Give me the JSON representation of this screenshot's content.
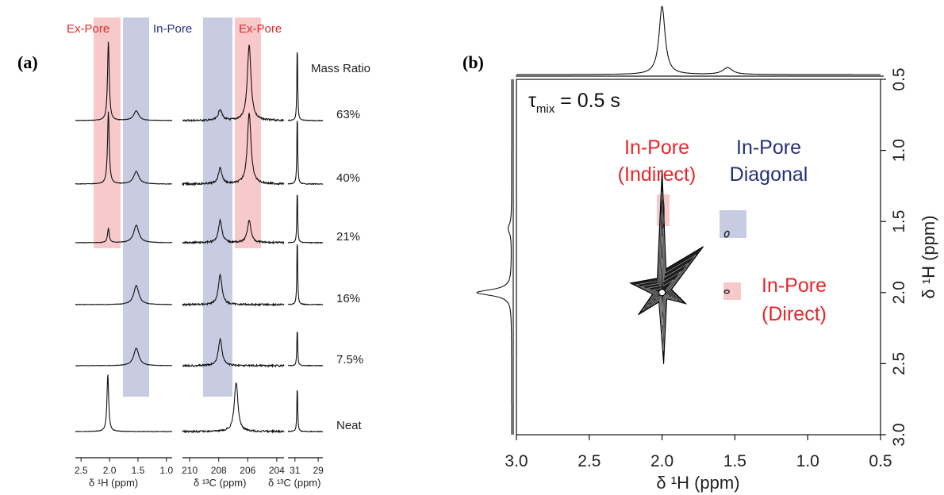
{
  "panel_a": {
    "label": "(a)",
    "bands": [
      {
        "label": "Ex-Pore",
        "color": "#e8262b"
      },
      {
        "label": "In-Pore",
        "color": "#27307a"
      },
      {
        "label": "Ex-Pore",
        "color": "#e8262b"
      }
    ],
    "mass_ratio_title": "Mass Ratio",
    "xlabels": [
      "δ ¹H (ppm)",
      "δ ¹³C (ppm)",
      "δ ¹³C (ppm)"
    ]
  },
  "panel_b": {
    "label": "(b)",
    "tau_prefix": "τ",
    "tau_sub": "mix",
    "tau_rest": " = 0.5 s",
    "annotations": [
      {
        "lines": [
          "In-Pore",
          "(Indirect)"
        ],
        "color": "#e8262b"
      },
      {
        "lines": [
          "In-Pore",
          "Diagonal"
        ],
        "color": "#27307a"
      },
      {
        "lines": [
          "In-Pore",
          "(Direct)"
        ],
        "color": "#e8262b"
      }
    ]
  },
  "chart_data": [
    {
      "type": "line",
      "panel": "(a)",
      "subplots": [
        {
          "xlabel": "δ ¹H (ppm)",
          "xlim": [
            2.6,
            0.9
          ],
          "x_ticks": [
            2.5,
            2.0,
            1.5,
            1.0
          ],
          "x_tick_labels": [
            "2.5",
            "2.0",
            "1.5",
            "1.0"
          ]
        },
        {
          "xlabel": "δ ¹³C (ppm)",
          "xlim": [
            210.5,
            203.5
          ],
          "x_ticks": [
            210,
            208,
            206,
            204
          ],
          "x_tick_labels": [
            "210",
            "208",
            "206",
            "204"
          ]
        },
        {
          "xlabel": "δ ¹³C (ppm)",
          "xlim": [
            31.6,
            28.6
          ],
          "x_ticks": [
            31,
            29
          ],
          "x_tick_labels": [
            "31",
            "29"
          ]
        }
      ],
      "series": [
        {
          "name": "63%",
          "peaks": [
            [
              {
                "x": 2.02,
                "h": 1.0
              },
              {
                "x": 1.53,
                "h": 0.12
              }
            ],
            [
              {
                "x": 207.9,
                "h": 0.14
              },
              {
                "x": 205.9,
                "h": 0.95
              }
            ],
            [
              {
                "x": 30.8,
                "h": 1.0
              }
            ]
          ]
        },
        {
          "name": "40%",
          "peaks": [
            [
              {
                "x": 2.02,
                "h": 0.92
              },
              {
                "x": 1.53,
                "h": 0.16
              }
            ],
            [
              {
                "x": 207.9,
                "h": 0.2
              },
              {
                "x": 205.9,
                "h": 0.9
              }
            ],
            [
              {
                "x": 30.8,
                "h": 0.92
              }
            ]
          ]
        },
        {
          "name": "21%",
          "peaks": [
            [
              {
                "x": 2.02,
                "h": 0.18
              },
              {
                "x": 1.53,
                "h": 0.22
              }
            ],
            [
              {
                "x": 207.9,
                "h": 0.28
              },
              {
                "x": 205.9,
                "h": 0.28
              }
            ],
            [
              {
                "x": 30.8,
                "h": 0.7
              }
            ]
          ]
        },
        {
          "name": "16%",
          "peaks": [
            [
              {
                "x": 1.53,
                "h": 0.24
              }
            ],
            [
              {
                "x": 207.9,
                "h": 0.38
              }
            ],
            [
              {
                "x": 30.8,
                "h": 0.88
              }
            ]
          ]
        },
        {
          "name": "7.5%",
          "peaks": [
            [
              {
                "x": 1.53,
                "h": 0.22
              }
            ],
            [
              {
                "x": 207.9,
                "h": 0.34
              }
            ],
            [
              {
                "x": 30.8,
                "h": 0.5
              }
            ]
          ]
        },
        {
          "name": "Neat",
          "peaks": [
            [
              {
                "x": 2.03,
                "h": 0.72
              }
            ],
            [
              {
                "x": 206.8,
                "h": 0.62
              }
            ],
            [
              {
                "x": 30.8,
                "h": 0.6
              }
            ]
          ]
        }
      ],
      "bands": [
        {
          "subplot": 0,
          "x_range": [
            2.22,
            1.82
          ],
          "label": "Ex-Pore"
        },
        {
          "subplot": 0,
          "x_range": [
            1.75,
            1.32
          ],
          "label": "In-Pore"
        },
        {
          "subplot": 1,
          "x_range": [
            208.8,
            207.2
          ],
          "label": "In-Pore"
        },
        {
          "subplot": 1,
          "x_range": [
            206.4,
            205.0
          ],
          "label": "Ex-Pore"
        }
      ]
    },
    {
      "type": "heatmap",
      "panel": "(b)",
      "xlabel": "δ ¹H (ppm)",
      "ylabel": "δ ¹H (ppm)",
      "xlim": [
        3.0,
        0.5
      ],
      "ylim": [
        3.0,
        0.5
      ],
      "x_ticks": [
        3.0,
        2.5,
        2.0,
        1.5,
        1.0,
        0.5
      ],
      "x_tick_labels": [
        "3.0",
        "2.5",
        "2.0",
        "1.5",
        "1.0",
        "0.5"
      ],
      "y_ticks": [
        0.5,
        1.0,
        1.5,
        2.0,
        2.5,
        3.0
      ],
      "y_tick_labels": [
        "0.5",
        "1.0",
        "1.5",
        "2.0",
        "2.5",
        "3.0"
      ],
      "cross_peaks": [
        {
          "x": 2.0,
          "y": 2.0,
          "label": "main diagonal"
        },
        {
          "x": 2.0,
          "y": 1.5,
          "label": "In-Pore (Indirect)"
        },
        {
          "x": 1.55,
          "y": 1.55,
          "label": "In-Pore Diagonal"
        },
        {
          "x": 1.55,
          "y": 2.0,
          "label": "In-Pore (Direct)"
        }
      ],
      "projection_peaks": [
        {
          "x": 2.0,
          "h": 1.0
        },
        {
          "x": 1.55,
          "h": 0.1
        }
      ]
    }
  ]
}
